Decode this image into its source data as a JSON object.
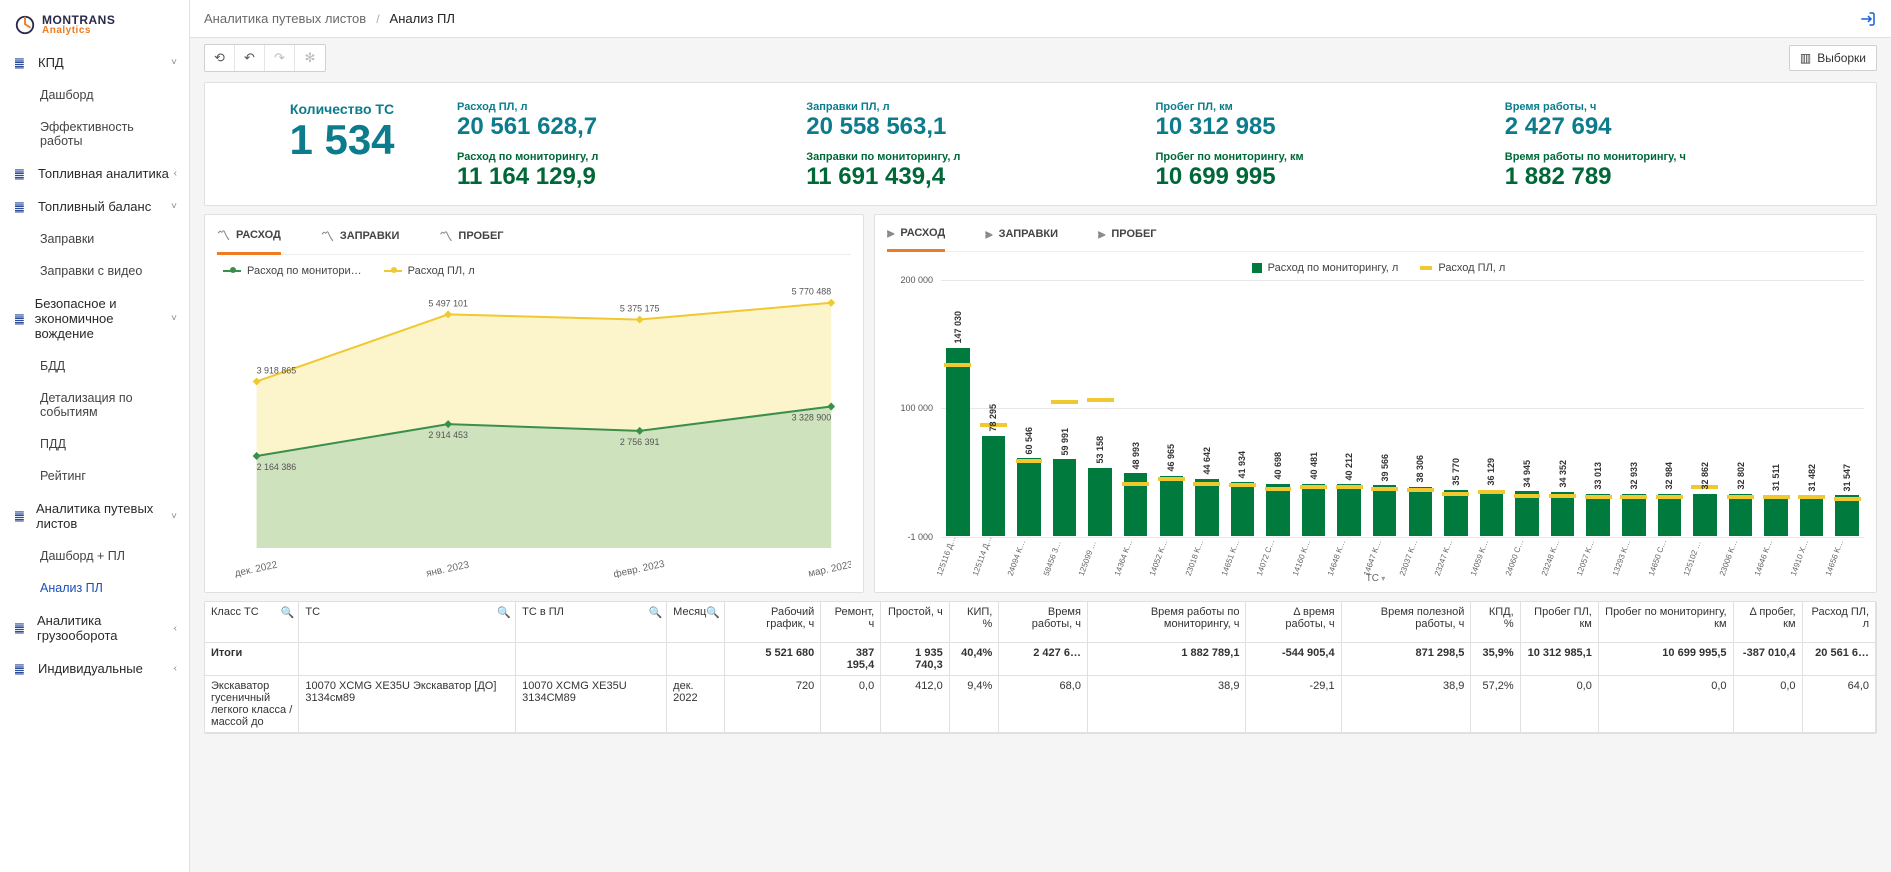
{
  "logo": {
    "line1": "MONTRANS",
    "line2": "Analytics"
  },
  "sidebar": {
    "sections": [
      {
        "icon": "bar",
        "label": "КПД",
        "open": true,
        "items": [
          {
            "label": "Дашборд"
          },
          {
            "label": "Эффективность работы"
          }
        ]
      },
      {
        "icon": "bar",
        "label": "Топливная аналитика",
        "open": false,
        "items": []
      },
      {
        "icon": "bar",
        "label": "Топливный баланс",
        "open": true,
        "items": [
          {
            "label": "Заправки"
          },
          {
            "label": "Заправки с видео"
          }
        ]
      },
      {
        "icon": "bar",
        "label": "Безопасное и экономичное вождение",
        "open": true,
        "items": [
          {
            "label": "БДД"
          },
          {
            "label": "Детализация по событиям"
          },
          {
            "label": "ПДД"
          },
          {
            "label": "Рейтинг"
          }
        ]
      },
      {
        "icon": "bar",
        "label": "Аналитика путевых листов",
        "open": true,
        "items": [
          {
            "label": "Дашборд + ПЛ"
          },
          {
            "label": "Анализ ПЛ",
            "active": true
          }
        ]
      },
      {
        "icon": "bar",
        "label": "Аналитика грузооборота",
        "open": false,
        "items": []
      },
      {
        "icon": "bar",
        "label": "Индивидуальные",
        "open": false,
        "items": []
      }
    ]
  },
  "breadcrumbs": {
    "parent": "Аналитика путевых листов",
    "current": "Анализ ПЛ"
  },
  "toolbar": {
    "samples": "Выборки"
  },
  "kpis": {
    "count": {
      "label": "Количество ТС",
      "value": "1 534"
    },
    "cols": [
      {
        "top": {
          "label": "Расход ПЛ, л",
          "value": "20 561 628,7"
        },
        "bot": {
          "label": "Расход по мониторингу, л",
          "value": "11 164 129,9"
        }
      },
      {
        "top": {
          "label": "Заправки ПЛ, л",
          "value": "20 558 563,1"
        },
        "bot": {
          "label": "Заправки по мониторингу, л",
          "value": "11 691 439,4"
        }
      },
      {
        "top": {
          "label": "Пробег ПЛ, км",
          "value": "10 312 985"
        },
        "bot": {
          "label": "Пробег по мониторингу, км",
          "value": "10 699 995"
        }
      },
      {
        "top": {
          "label": "Время работы, ч",
          "value": "2 427 694"
        },
        "bot": {
          "label": "Время работы по мониторингу, ч",
          "value": "1 882 789"
        }
      }
    ]
  },
  "line_chart": {
    "tabs": [
      {
        "label": "РАСХОД",
        "active": true
      },
      {
        "label": "ЗАПРАВКИ"
      },
      {
        "label": "ПРОБЕГ"
      }
    ],
    "legend": [
      {
        "label": "Расход по монитори…",
        "color": "#3a8f4a"
      },
      {
        "label": "Расход ПЛ, л",
        "color": "#f0c830"
      }
    ],
    "x_labels": [
      "дек. 2022",
      "янв. 2023",
      "февр. 2023",
      "мар. 2023"
    ],
    "ylim": [
      0,
      6000000
    ],
    "series_yellow": {
      "label": "Расход ПЛ, л",
      "color": "#f0c830",
      "fill": "#faeeae",
      "points": [
        3918865,
        5497101,
        5375175,
        5770488
      ]
    },
    "series_green": {
      "label": "Расход по мониторингу",
      "color": "#3a8f4a",
      "fill": "#b6d9b6",
      "points": [
        2164386,
        2914453,
        2756391,
        3328900
      ]
    }
  },
  "bar_chart": {
    "tabs": [
      {
        "label": "РАСХОД",
        "active": true
      },
      {
        "label": "ЗАПРАВКИ"
      },
      {
        "label": "ПРОБЕГ"
      }
    ],
    "legend": [
      {
        "label": "Расход по мониторингу, л",
        "color": "#007a3d"
      },
      {
        "label": "Расход ПЛ, л",
        "color": "#f0c830"
      }
    ],
    "ylim": [
      -1000,
      200000
    ],
    "yticks": [
      -1000,
      100000,
      200000
    ],
    "x_title": "ТС",
    "bars": [
      {
        "x": "125116 ДЭС АД-…",
        "v": 147030,
        "m": 135000
      },
      {
        "x": "125114 ДЭС АД-500 Т4…",
        "v": 78295,
        "m": 88000
      },
      {
        "x": "24094 KOMATSU D275 Буль…",
        "v": 60546,
        "m": 60000
      },
      {
        "x": "58456 3Д-500 Т400-2РН",
        "v": 59991,
        "m": 106000
      },
      {
        "x": "125099 МGE М-500 W53500…",
        "v": 53158,
        "m": 108000
      },
      {
        "x": "14364 KOMATSU PC400 229…",
        "v": 48993,
        "m": 42000
      },
      {
        "x": "14052 KOMATSU PC400 Экс…",
        "v": 46965,
        "m": 46000
      },
      {
        "x": "23018 KOMATSU PC400 Экс…",
        "v": 44642,
        "m": 42000
      },
      {
        "x": "14651 KOMATSU PC400 Экс…",
        "v": 41934,
        "m": 41000
      },
      {
        "x": "14072 CAT 345D Экс…",
        "v": 40698,
        "m": 38000
      },
      {
        "x": "14160 KOMATSU PC400 535…",
        "v": 40481,
        "m": 40000
      },
      {
        "x": "14648 KOMATSU PC400 Экс…",
        "v": 40212,
        "m": 40000
      },
      {
        "x": "14647 KOMATSU PC400 Экс…",
        "v": 39566,
        "m": 38000
      },
      {
        "x": "23037 KOMATSU D275 Буль…",
        "v": 38306,
        "m": 37000
      },
      {
        "x": "23247 KOMATSU D275 279м…",
        "v": 35770,
        "m": 34000
      },
      {
        "x": "14059 KOMATSU PC400 Экс…",
        "v": 36129,
        "m": 36000
      },
      {
        "x": "24060 CAT Бульдозер D275…",
        "v": 34945,
        "m": 33000
      },
      {
        "x": "23248 KOMATSU D275 Буль…",
        "v": 34352,
        "m": 33000
      },
      {
        "x": "12057 KOMATSU PC400 Экс…",
        "v": 33013,
        "m": 32000
      },
      {
        "x": "13293 KOMATSU Экскаватор…",
        "v": 32933,
        "m": 32000
      },
      {
        "x": "14650 CAT D9R Бульдозер 5…",
        "v": 32984,
        "m": 32000
      },
      {
        "x": "125102 ДЭС МGE М-500 W5…",
        "v": 32862,
        "m": 40000
      },
      {
        "x": "23006 KOMATSU D275 Буль…",
        "v": 32802,
        "m": 32000
      },
      {
        "x": "14646 KOMATSU XE370CA Экс…",
        "v": 31511,
        "m": 32000
      },
      {
        "x": "14910 XCMG XE370CA Экс…",
        "v": 31482,
        "m": 32000
      },
      {
        "x": "14656 KOMATSU PC400 Экс…",
        "v": 31547,
        "m": 30000
      }
    ]
  },
  "table": {
    "columns": [
      {
        "label": "Класс ТС",
        "search": true
      },
      {
        "label": "ТС",
        "search": true
      },
      {
        "label": "ТС в ПЛ",
        "search": true
      },
      {
        "label": "Месяц",
        "search": true
      },
      {
        "label": "Рабочий график, ч",
        "r": true
      },
      {
        "label": "Ремонт, ч",
        "r": true
      },
      {
        "label": "Простой, ч",
        "r": true
      },
      {
        "label": "КИП, %",
        "r": true
      },
      {
        "label": "Время работы, ч",
        "r": true
      },
      {
        "label": "Время работы по мониторингу, ч",
        "r": true
      },
      {
        "label": "Δ время работы, ч",
        "r": true
      },
      {
        "label": "Время полезной работы, ч",
        "r": true
      },
      {
        "label": "КПД, %",
        "r": true
      },
      {
        "label": "Пробег ПЛ, км",
        "r": true
      },
      {
        "label": "Пробег по мониторингу, км",
        "r": true
      },
      {
        "label": "Δ пробег, км",
        "r": true
      },
      {
        "label": "Расход ПЛ, л",
        "r": true
      }
    ],
    "total_label": "Итоги",
    "totals": [
      "",
      "",
      "",
      "",
      "5 521 680",
      "387 195,4",
      "1 935 740,3",
      "40,4%",
      "2 427 6…",
      "1 882 789,1",
      "-544 905,4",
      "871 298,5",
      "35,9%",
      "10 312 985,1",
      "10 699 995,5",
      "-387 010,4",
      "20 561 6…"
    ],
    "row": {
      "class": "Экскаватор гусеничный легкого класса /массой до",
      "ts": "10070 XCMG XE35U Экскаватор [ДО] 3134см89",
      "ts_pl": "10070 XCMG XE35U 3134СМ89",
      "month": "дек. 2022",
      "vals": [
        "720",
        "0,0",
        "412,0",
        "9,4%",
        "68,0",
        "38,9",
        "-29,1",
        "38,9",
        "57,2%",
        "0,0",
        "0,0",
        "0,0",
        "64,0"
      ]
    }
  },
  "colors": {
    "teal": "#0c7c8c",
    "green": "#006838",
    "orange": "#ed7c24",
    "series_green": "#3a8f4a",
    "series_yellow": "#f0c830",
    "bar_green": "#007a3d"
  }
}
